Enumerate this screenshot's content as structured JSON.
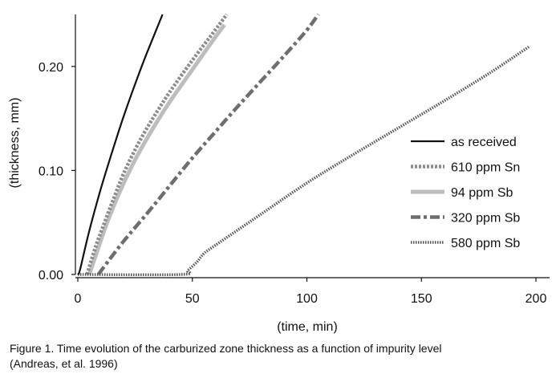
{
  "chart_data": {
    "type": "line",
    "title": "",
    "xlabel": "(time, min)",
    "ylabel": "(thickness, mm)",
    "xlim": [
      0,
      200
    ],
    "ylim": [
      0,
      0.25
    ],
    "x_ticks": [
      0,
      50,
      100,
      150,
      200
    ],
    "x_tick_labels": [
      "0",
      "50",
      "100",
      "150",
      "200"
    ],
    "y_ticks": [
      0,
      0.1,
      0.2
    ],
    "y_tick_labels": [
      "0.00",
      "0.10",
      "0.20"
    ],
    "legend_position": "right-middle",
    "series": [
      {
        "name": "as received",
        "style": "solid",
        "color": "#111111",
        "x": [
          0,
          1,
          5,
          10,
          15,
          20,
          25,
          30,
          37
        ],
        "y": [
          0,
          0.005,
          0.042,
          0.082,
          0.118,
          0.152,
          0.183,
          0.212,
          0.25
        ]
      },
      {
        "name": "610 ppm Sn",
        "style": "dotted",
        "color": "#8c8c8c",
        "x": [
          4,
          8,
          12,
          16,
          20,
          25,
          30,
          35,
          40,
          50,
          60,
          65
        ],
        "y": [
          0,
          0.028,
          0.052,
          0.075,
          0.097,
          0.12,
          0.14,
          0.158,
          0.175,
          0.206,
          0.235,
          0.25
        ]
      },
      {
        "name": "94 ppm Sb",
        "style": "solid-thick",
        "color": "#bdbdbd",
        "x": [
          5,
          9,
          13,
          18,
          24,
          30,
          36,
          42,
          50,
          58,
          64
        ],
        "y": [
          0,
          0.026,
          0.051,
          0.078,
          0.106,
          0.13,
          0.152,
          0.172,
          0.197,
          0.222,
          0.24
        ]
      },
      {
        "name": "320 ppm Sb",
        "style": "dashdot",
        "color": "#6e6e6e",
        "x": [
          9,
          12,
          20,
          30,
          40,
          50,
          60,
          70,
          80,
          90,
          100,
          105
        ],
        "y": [
          0,
          0.009,
          0.032,
          0.058,
          0.085,
          0.112,
          0.137,
          0.162,
          0.186,
          0.21,
          0.235,
          0.25
        ]
      },
      {
        "name": "580 ppm Sb",
        "style": "dense-dotted",
        "color": "#555555",
        "x": [
          0,
          45,
          48,
          52,
          55,
          60,
          80,
          100,
          120,
          140,
          160,
          180,
          197
        ],
        "y": [
          0,
          0,
          0.004,
          0.012,
          0.02,
          0.028,
          0.058,
          0.088,
          0.115,
          0.141,
          0.167,
          0.194,
          0.219
        ]
      }
    ]
  },
  "caption": {
    "line1": "Figure 1. Time evolution of the carburized zone thickness as a function of impurity level",
    "line2": "(Andreas, et al. 1996)"
  }
}
